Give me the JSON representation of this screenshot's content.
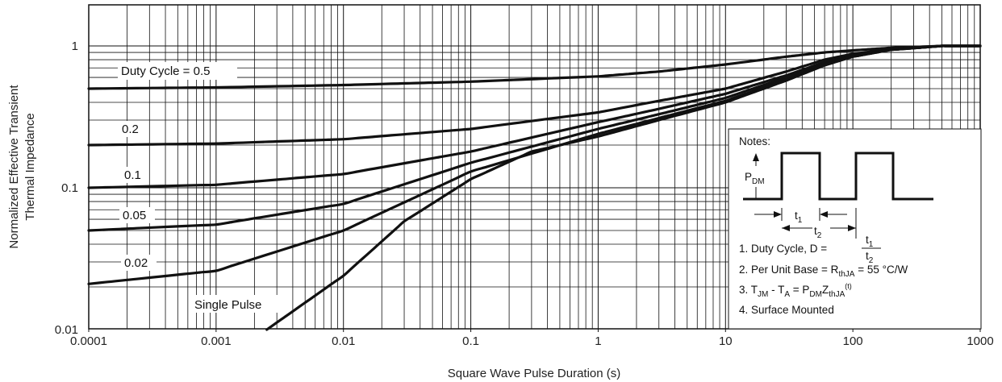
{
  "chart_data": {
    "type": "line",
    "x_scale": "log",
    "y_scale": "log",
    "xlim": [
      0.0001,
      1000
    ],
    "ylim": [
      0.01,
      2
    ],
    "xlabel": "Square Wave Pulse Duration (s)",
    "ylabel": [
      "Normalized Effective Transient",
      "Thermal Impedance"
    ],
    "x_tick_labels": [
      "0.0001",
      "0.001",
      "0.01",
      "0.1",
      "1",
      "10",
      "100",
      "1000"
    ],
    "y_tick_labels": [
      "0.01",
      "0.1",
      "1"
    ],
    "grid": true,
    "series": [
      {
        "name": "Duty Cycle = 0.5",
        "x": [
          0.0001,
          0.001,
          0.01,
          0.1,
          1,
          3,
          10,
          30,
          60,
          100,
          200,
          500,
          1000
        ],
        "y": [
          0.5,
          0.51,
          0.53,
          0.56,
          0.61,
          0.66,
          0.74,
          0.84,
          0.9,
          0.93,
          0.97,
          1.0,
          1.0
        ]
      },
      {
        "name": "0.2",
        "x": [
          0.0001,
          0.001,
          0.01,
          0.1,
          1,
          3,
          10,
          30,
          60,
          100,
          200,
          500,
          1000
        ],
        "y": [
          0.2,
          0.205,
          0.22,
          0.26,
          0.34,
          0.41,
          0.5,
          0.66,
          0.8,
          0.88,
          0.95,
          1.0,
          1.0
        ]
      },
      {
        "name": "0.1",
        "x": [
          0.0001,
          0.001,
          0.01,
          0.1,
          1,
          3,
          10,
          30,
          60,
          100,
          200,
          500,
          1000
        ],
        "y": [
          0.1,
          0.105,
          0.125,
          0.18,
          0.29,
          0.36,
          0.46,
          0.62,
          0.77,
          0.86,
          0.94,
          1.0,
          1.0
        ]
      },
      {
        "name": "0.05",
        "x": [
          0.0001,
          0.001,
          0.01,
          0.1,
          1,
          3,
          10,
          30,
          60,
          100,
          200,
          500,
          1000
        ],
        "y": [
          0.05,
          0.055,
          0.077,
          0.15,
          0.26,
          0.33,
          0.43,
          0.6,
          0.75,
          0.85,
          0.94,
          1.0,
          1.0
        ]
      },
      {
        "name": "0.02",
        "x": [
          0.0001,
          0.001,
          0.01,
          0.1,
          1,
          3,
          10,
          30,
          60,
          100,
          200,
          500,
          1000
        ],
        "y": [
          0.021,
          0.026,
          0.05,
          0.13,
          0.24,
          0.31,
          0.41,
          0.58,
          0.74,
          0.84,
          0.94,
          1.0,
          1.0
        ]
      },
      {
        "name": "Single Pulse",
        "x": [
          0.0025,
          0.01,
          0.03,
          0.1,
          0.3,
          1,
          3,
          10,
          30,
          60,
          100,
          200,
          500,
          1000
        ],
        "y": [
          0.01,
          0.024,
          0.058,
          0.115,
          0.18,
          0.23,
          0.3,
          0.4,
          0.57,
          0.73,
          0.84,
          0.94,
          1.0,
          1.0
        ]
      }
    ]
  },
  "notes": {
    "title": "Notes:",
    "pdm": "P",
    "pdm_sub": "DM",
    "t1": "t",
    "t1_sub": "1",
    "t2": "t",
    "t2_sub": "2",
    "line1": "1. Duty Cycle, D = ",
    "frac_num": "t",
    "frac_num_sub": "1",
    "frac_den": "t",
    "frac_den_sub": "2",
    "line2a": "2. Per Unit Base = R",
    "line2_sub": "thJA",
    "line2b": " = 55 °C/W",
    "line3a": "3. T",
    "line3_sub1": "JM",
    "line3b": " - T",
    "line3_sub2": "A",
    "line3c": " = P",
    "line3_sub3": "DM",
    "line3d": "Z",
    "line3_sub4": "thJA",
    "line3_sup": "(t)",
    "line4": "4. Surface Mounted"
  }
}
